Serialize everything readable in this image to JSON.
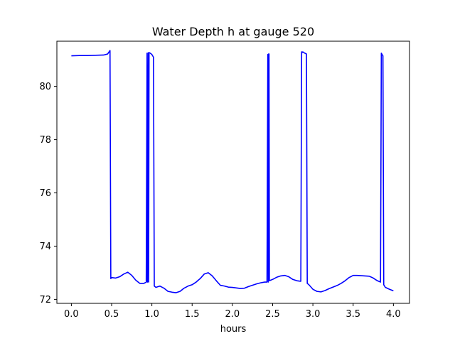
{
  "chart_data": {
    "type": "line",
    "title": "Water Depth h at gauge 520",
    "xlabel": "hours",
    "ylabel": "",
    "xlim": [
      -0.18,
      4.2
    ],
    "ylim": [
      71.85,
      81.7
    ],
    "grid": false,
    "x_ticks": [
      0.0,
      0.5,
      1.0,
      1.5,
      2.0,
      2.5,
      3.0,
      3.5,
      4.0
    ],
    "x_tick_labels": [
      "0.0",
      "0.5",
      "1.0",
      "1.5",
      "2.0",
      "2.5",
      "3.0",
      "3.5",
      "4.0"
    ],
    "y_ticks": [
      72,
      74,
      76,
      78,
      80
    ],
    "y_tick_labels": [
      "72",
      "74",
      "76",
      "78",
      "80"
    ],
    "colors": {
      "line": "#0000ff"
    },
    "series": [
      {
        "x": [
          0.0,
          0.1,
          0.2,
          0.3,
          0.4,
          0.45,
          0.48,
          0.49,
          0.5,
          0.55,
          0.6,
          0.65,
          0.7,
          0.75,
          0.8,
          0.85,
          0.9,
          0.93,
          0.94,
          0.945,
          0.955,
          0.96,
          0.965,
          0.97,
          0.98,
          1.0,
          1.02,
          1.03,
          1.05,
          1.1,
          1.15,
          1.2,
          1.25,
          1.3,
          1.35,
          1.4,
          1.45,
          1.5,
          1.55,
          1.6,
          1.65,
          1.7,
          1.75,
          1.8,
          1.85,
          1.9,
          1.95,
          2.0,
          2.05,
          2.1,
          2.15,
          2.2,
          2.25,
          2.3,
          2.35,
          2.4,
          2.43,
          2.44,
          2.445,
          2.45,
          2.455,
          2.46,
          2.5,
          2.55,
          2.6,
          2.65,
          2.7,
          2.75,
          2.8,
          2.85,
          2.86,
          2.87,
          2.875,
          2.9,
          2.92,
          2.93,
          2.95,
          3.0,
          3.05,
          3.1,
          3.15,
          3.2,
          3.25,
          3.3,
          3.35,
          3.4,
          3.45,
          3.5,
          3.55,
          3.6,
          3.65,
          3.7,
          3.75,
          3.8,
          3.84,
          3.85,
          3.86,
          3.87,
          3.88,
          3.9,
          3.95,
          4.0
        ],
        "y": [
          81.15,
          81.16,
          81.16,
          81.17,
          81.18,
          81.22,
          81.35,
          72.78,
          72.82,
          72.8,
          72.85,
          72.95,
          73.02,
          72.9,
          72.72,
          72.6,
          72.6,
          72.65,
          81.25,
          72.65,
          81.27,
          72.65,
          81.25,
          81.27,
          81.25,
          81.2,
          81.1,
          72.5,
          72.45,
          72.5,
          72.42,
          72.3,
          72.27,
          72.25,
          72.3,
          72.42,
          72.5,
          72.55,
          72.65,
          72.78,
          72.95,
          73.0,
          72.88,
          72.7,
          72.53,
          72.5,
          72.46,
          72.45,
          72.43,
          72.41,
          72.42,
          72.48,
          72.53,
          72.58,
          72.62,
          72.65,
          72.65,
          81.2,
          72.65,
          81.22,
          81.22,
          72.7,
          72.75,
          72.83,
          72.88,
          72.9,
          72.85,
          72.75,
          72.7,
          72.68,
          81.3,
          81.28,
          81.3,
          81.25,
          81.22,
          72.6,
          72.55,
          72.38,
          72.3,
          72.28,
          72.33,
          72.4,
          72.46,
          72.52,
          72.6,
          72.7,
          72.82,
          72.9,
          72.9,
          72.89,
          72.88,
          72.87,
          72.8,
          72.7,
          72.65,
          81.25,
          81.2,
          81.15,
          72.55,
          72.45,
          72.38,
          72.32
        ]
      }
    ]
  }
}
